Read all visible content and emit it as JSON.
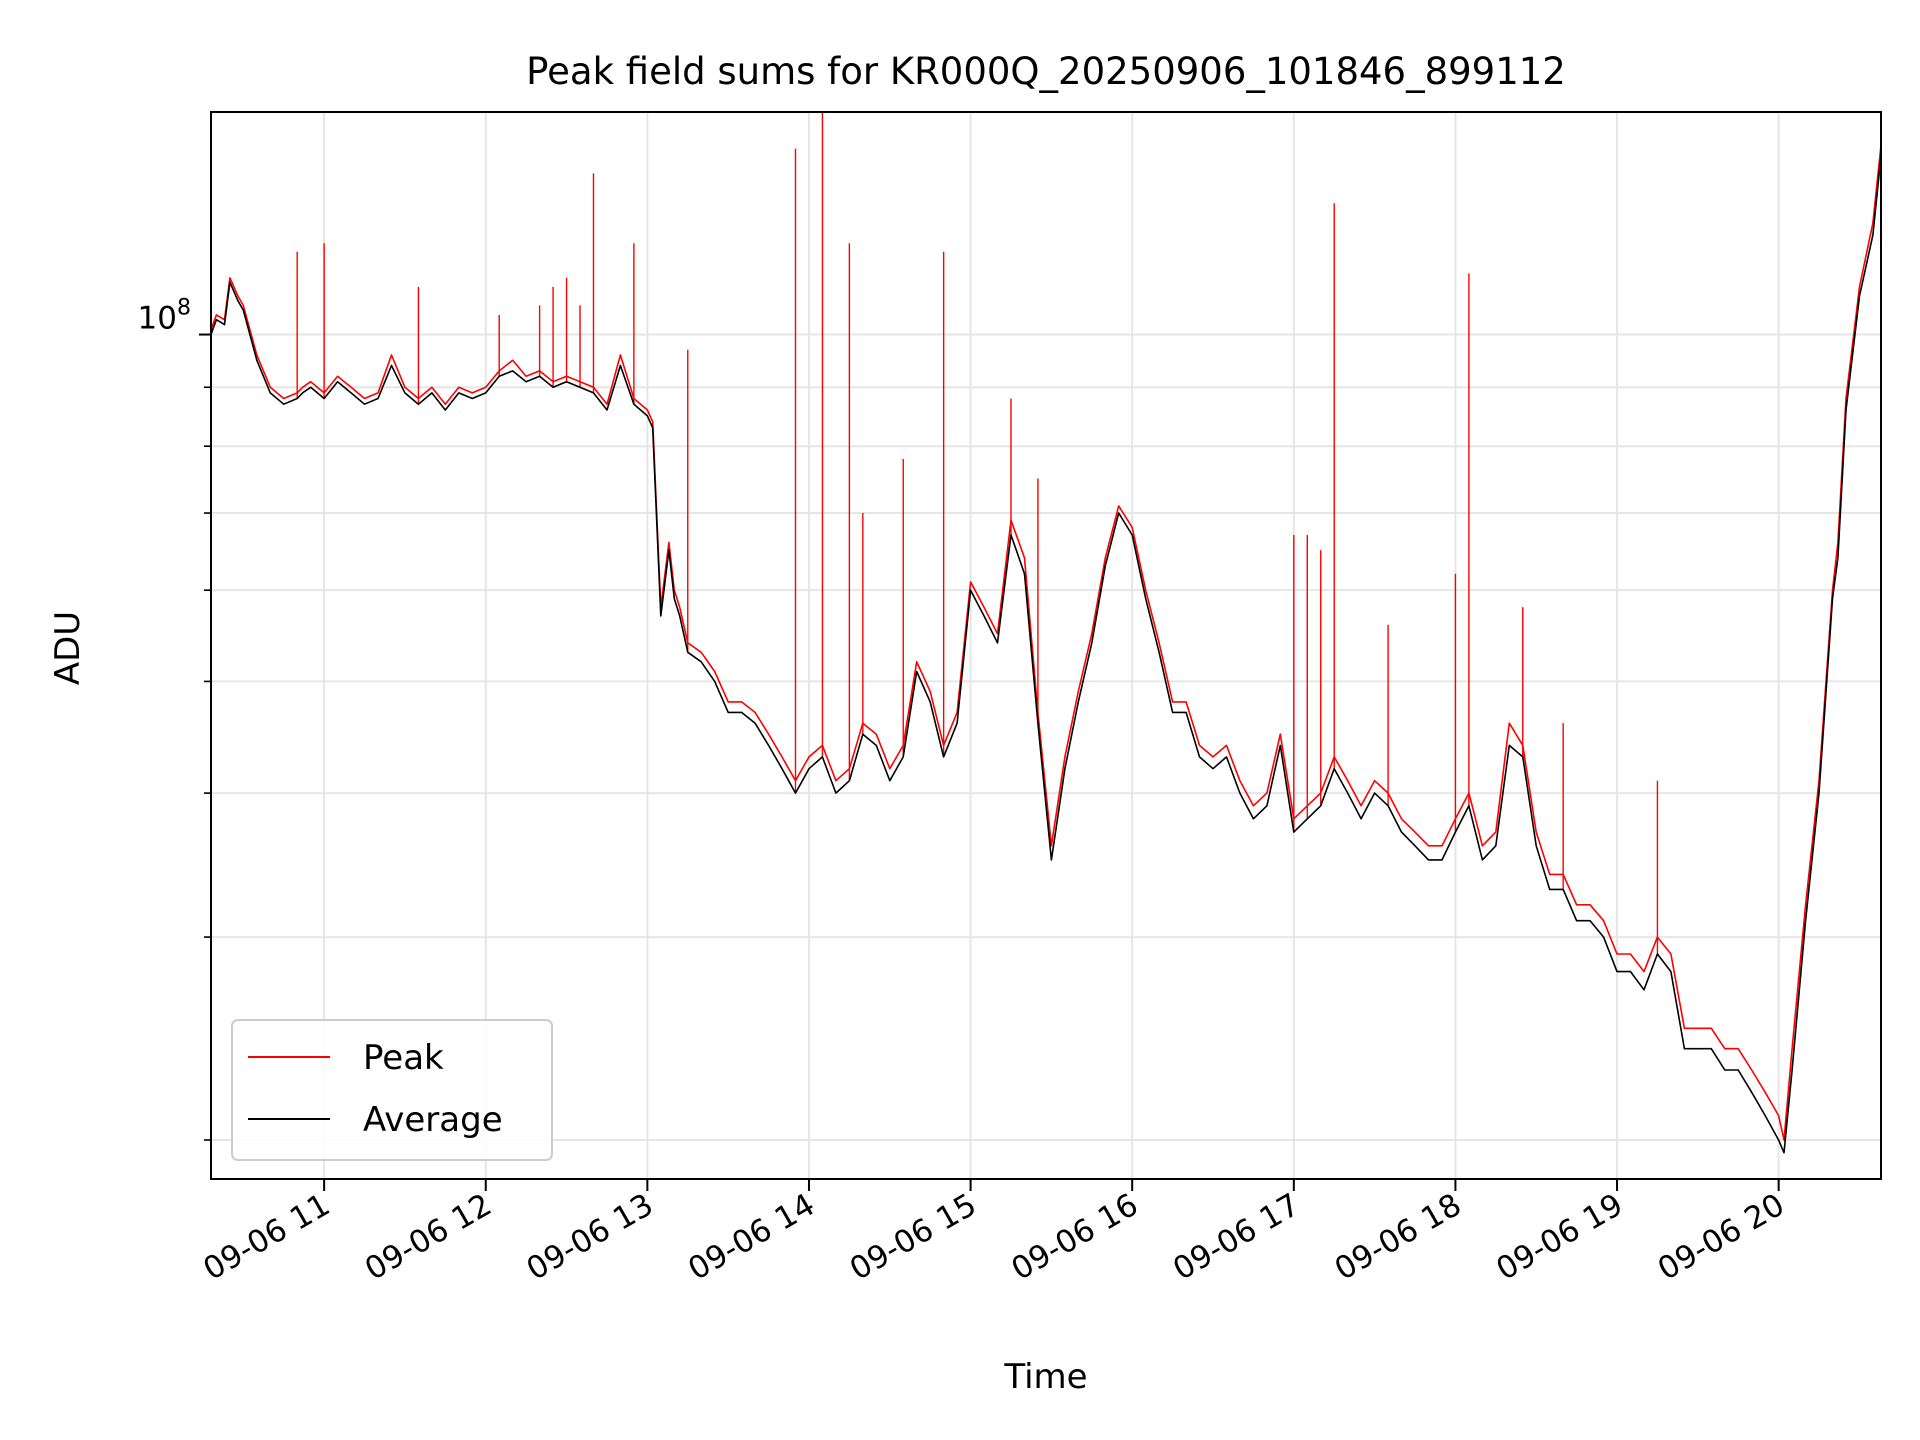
{
  "chart_data": {
    "type": "line",
    "title": "Peak field sums for KR000Q_20250906_101846_899112",
    "xlabel": "Time",
    "ylabel": "ADU",
    "x_scale": "time",
    "y_scale": "log",
    "grid": true,
    "legend_position": "lower-left",
    "xlim": [
      "2025-09-06 10:18",
      "2025-09-06 20:38"
    ],
    "ylim": [
      18500000,
      156000000
    ],
    "x_ticks": [
      {
        "value": "2025-09-06 11:00",
        "label": "09-06 11"
      },
      {
        "value": "2025-09-06 12:00",
        "label": "09-06 12"
      },
      {
        "value": "2025-09-06 13:00",
        "label": "09-06 13"
      },
      {
        "value": "2025-09-06 14:00",
        "label": "09-06 14"
      },
      {
        "value": "2025-09-06 15:00",
        "label": "09-06 15"
      },
      {
        "value": "2025-09-06 16:00",
        "label": "09-06 16"
      },
      {
        "value": "2025-09-06 17:00",
        "label": "09-06 17"
      },
      {
        "value": "2025-09-06 18:00",
        "label": "09-06 18"
      },
      {
        "value": "2025-09-06 19:00",
        "label": "09-06 19"
      },
      {
        "value": "2025-09-06 20:00",
        "label": "09-06 20"
      }
    ],
    "y_major_ticks": [
      {
        "value": 100000000,
        "label_base": "10",
        "label_exp": "8"
      }
    ],
    "y_minor_ticks": [
      20000000,
      30000000,
      40000000,
      50000000,
      60000000,
      70000000,
      80000000,
      90000000
    ],
    "series": [
      {
        "name": "Peak",
        "color": "#ff0000",
        "x": [
          "10:18",
          "10:20",
          "10:23",
          "10:25",
          "10:28",
          "10:30",
          "10:35",
          "10:40",
          "10:45",
          "10:50",
          "10:52",
          "10:55",
          "11:00",
          "11:05",
          "11:10",
          "11:15",
          "11:20",
          "11:25",
          "11:30",
          "11:35",
          "11:40",
          "11:45",
          "11:50",
          "11:55",
          "12:00",
          "12:05",
          "12:10",
          "12:15",
          "12:20",
          "12:25",
          "12:30",
          "12:35",
          "12:40",
          "12:45",
          "12:50",
          "12:55",
          "13:00",
          "13:02",
          "13:05",
          "13:08",
          "13:10",
          "13:12",
          "13:15",
          "13:20",
          "13:25",
          "13:30",
          "13:35",
          "13:40",
          "13:45",
          "13:50",
          "13:55",
          "14:00",
          "14:05",
          "14:10",
          "14:15",
          "14:20",
          "14:25",
          "14:30",
          "14:35",
          "14:40",
          "14:45",
          "14:50",
          "14:55",
          "15:00",
          "15:05",
          "15:10",
          "15:15",
          "15:20",
          "15:25",
          "15:30",
          "15:35",
          "15:40",
          "15:45",
          "15:50",
          "15:55",
          "16:00",
          "16:05",
          "16:10",
          "16:15",
          "16:20",
          "16:25",
          "16:30",
          "16:35",
          "16:40",
          "16:45",
          "16:50",
          "16:55",
          "17:00",
          "17:05",
          "17:10",
          "17:15",
          "17:20",
          "17:25",
          "17:30",
          "17:35",
          "17:40",
          "17:45",
          "17:50",
          "17:55",
          "18:00",
          "18:05",
          "18:10",
          "18:15",
          "18:20",
          "18:25",
          "18:30",
          "18:35",
          "18:40",
          "18:45",
          "18:50",
          "18:55",
          "19:00",
          "19:05",
          "19:10",
          "19:15",
          "19:20",
          "19:25",
          "19:30",
          "19:35",
          "19:40",
          "19:45",
          "19:50",
          "19:55",
          "20:00",
          "20:02",
          "20:05",
          "20:10",
          "20:15",
          "20:20",
          "20:22",
          "20:25",
          "20:30",
          "20:35",
          "20:38"
        ],
        "values": [
          101000000,
          104000000,
          103000000,
          112000000,
          108000000,
          106000000,
          96000000,
          90000000,
          88000000,
          89000000,
          90000000,
          91000000,
          89000000,
          92000000,
          90000000,
          88000000,
          89000000,
          96000000,
          90000000,
          88000000,
          90000000,
          87000000,
          90000000,
          89000000,
          90000000,
          93000000,
          95000000,
          92000000,
          93000000,
          91000000,
          92000000,
          91000000,
          90000000,
          87000000,
          96000000,
          88000000,
          86000000,
          84000000,
          58000000,
          66000000,
          60000000,
          58000000,
          54000000,
          53000000,
          51000000,
          48000000,
          48000000,
          47000000,
          45000000,
          43000000,
          41000000,
          43000000,
          44000000,
          41000000,
          42000000,
          46000000,
          45000000,
          42000000,
          44000000,
          52000000,
          49000000,
          44000000,
          47000000,
          61000000,
          58000000,
          55000000,
          69000000,
          64000000,
          47000000,
          36000000,
          43000000,
          49000000,
          55000000,
          64000000,
          71000000,
          68000000,
          60000000,
          54000000,
          48000000,
          48000000,
          44000000,
          43000000,
          44000000,
          41000000,
          39000000,
          40000000,
          45000000,
          38000000,
          39000000,
          40000000,
          43000000,
          41000000,
          39000000,
          41000000,
          40000000,
          38000000,
          37000000,
          36000000,
          36000000,
          38000000,
          40000000,
          36000000,
          37000000,
          46000000,
          44000000,
          37000000,
          34000000,
          34000000,
          32000000,
          32000000,
          31000000,
          29000000,
          29000000,
          28000000,
          30000000,
          29000000,
          25000000,
          25000000,
          25000000,
          24000000,
          24000000,
          23000000,
          22000000,
          21000000,
          20000000,
          24000000,
          32000000,
          41000000,
          60000000,
          66000000,
          88000000,
          110000000,
          125000000,
          146000000
        ]
      },
      {
        "name": "Average",
        "color": "#000000",
        "x": [
          "10:18",
          "10:20",
          "10:23",
          "10:25",
          "10:28",
          "10:30",
          "10:35",
          "10:40",
          "10:45",
          "10:50",
          "10:52",
          "10:55",
          "11:00",
          "11:05",
          "11:10",
          "11:15",
          "11:20",
          "11:25",
          "11:30",
          "11:35",
          "11:40",
          "11:45",
          "11:50",
          "11:55",
          "12:00",
          "12:05",
          "12:10",
          "12:15",
          "12:20",
          "12:25",
          "12:30",
          "12:35",
          "12:40",
          "12:45",
          "12:50",
          "12:55",
          "13:00",
          "13:02",
          "13:05",
          "13:08",
          "13:10",
          "13:12",
          "13:15",
          "13:20",
          "13:25",
          "13:30",
          "13:35",
          "13:40",
          "13:45",
          "13:50",
          "13:55",
          "14:00",
          "14:05",
          "14:10",
          "14:15",
          "14:20",
          "14:25",
          "14:30",
          "14:35",
          "14:40",
          "14:45",
          "14:50",
          "14:55",
          "15:00",
          "15:05",
          "15:10",
          "15:15",
          "15:20",
          "15:25",
          "15:30",
          "15:35",
          "15:40",
          "15:45",
          "15:50",
          "15:55",
          "16:00",
          "16:05",
          "16:10",
          "16:15",
          "16:20",
          "16:25",
          "16:30",
          "16:35",
          "16:40",
          "16:45",
          "16:50",
          "16:55",
          "17:00",
          "17:05",
          "17:10",
          "17:15",
          "17:20",
          "17:25",
          "17:30",
          "17:35",
          "17:40",
          "17:45",
          "17:50",
          "17:55",
          "18:00",
          "18:05",
          "18:10",
          "18:15",
          "18:20",
          "18:25",
          "18:30",
          "18:35",
          "18:40",
          "18:45",
          "18:50",
          "18:55",
          "19:00",
          "19:05",
          "19:10",
          "19:15",
          "19:20",
          "19:25",
          "19:30",
          "19:35",
          "19:40",
          "19:45",
          "19:50",
          "19:55",
          "20:00",
          "20:02",
          "20:05",
          "20:10",
          "20:15",
          "20:20",
          "20:22",
          "20:25",
          "20:30",
          "20:35",
          "20:38"
        ],
        "values": [
          100000000,
          103000000,
          102000000,
          111000000,
          107000000,
          105000000,
          95000000,
          89000000,
          87000000,
          88000000,
          89000000,
          90000000,
          88000000,
          91000000,
          89000000,
          87000000,
          88000000,
          94000000,
          89000000,
          87000000,
          89000000,
          86000000,
          89000000,
          88000000,
          89000000,
          92000000,
          93000000,
          91000000,
          92000000,
          90000000,
          91000000,
          90000000,
          89000000,
          86000000,
          94000000,
          87000000,
          85000000,
          83000000,
          57000000,
          65000000,
          59000000,
          57000000,
          53000000,
          52000000,
          50000000,
          47000000,
          47000000,
          46000000,
          44000000,
          42000000,
          40000000,
          42000000,
          43000000,
          40000000,
          41000000,
          45000000,
          44000000,
          41000000,
          43000000,
          51000000,
          48000000,
          43000000,
          46000000,
          60000000,
          57000000,
          54000000,
          67000000,
          62000000,
          46000000,
          35000000,
          42000000,
          48000000,
          54000000,
          63000000,
          70000000,
          67000000,
          59000000,
          53000000,
          47000000,
          47000000,
          43000000,
          42000000,
          43000000,
          40000000,
          38000000,
          39000000,
          44000000,
          37000000,
          38000000,
          39000000,
          42000000,
          40000000,
          38000000,
          40000000,
          39000000,
          37000000,
          36000000,
          35000000,
          35000000,
          37000000,
          39000000,
          35000000,
          36000000,
          44000000,
          43000000,
          36000000,
          33000000,
          33000000,
          31000000,
          31000000,
          30000000,
          28000000,
          28000000,
          27000000,
          29000000,
          28000000,
          24000000,
          24000000,
          24000000,
          23000000,
          23000000,
          22000000,
          21000000,
          20000000,
          19500000,
          23000000,
          31000000,
          40000000,
          59000000,
          64000000,
          86000000,
          108000000,
          122000000,
          143000000
        ]
      },
      {
        "name": "",
        "note_kind": "spikes",
        "color": "#ff0000",
        "x": [
          "10:50",
          "11:00",
          "11:35",
          "12:05",
          "12:20",
          "12:25",
          "12:30",
          "12:35",
          "12:40",
          "12:55",
          "13:15",
          "13:55",
          "14:05",
          "14:15",
          "14:20",
          "14:35",
          "14:50",
          "15:15",
          "15:25",
          "17:00",
          "17:05",
          "17:10",
          "17:15",
          "17:35",
          "18:00",
          "18:05",
          "18:25",
          "18:40",
          "19:15"
        ],
        "values": [
          118000000,
          120000000,
          110000000,
          104000000,
          106000000,
          110000000,
          112000000,
          106000000,
          138000000,
          120000000,
          97000000,
          145000000,
          156000000,
          120000000,
          70000000,
          78000000,
          118000000,
          88000000,
          75000000,
          67000000,
          67000000,
          65000000,
          130000000,
          56000000,
          62000000,
          113000000,
          58000000,
          46000000,
          41000000
        ]
      }
    ],
    "legend": [
      {
        "label": "Peak",
        "color": "#ff0000"
      },
      {
        "label": "Average",
        "color": "#000000"
      }
    ]
  }
}
